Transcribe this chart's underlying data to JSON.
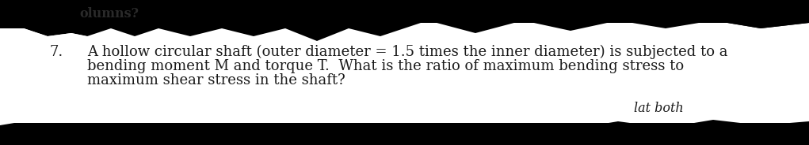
{
  "header_text": "olumns?",
  "question_number": "7.",
  "line1": "A hollow circular shaft (outer diameter = 1.5 times the inner diameter) is subjected to a",
  "line2": "bending moment M and torque T.  What is the ratio of maximum bending stress to",
  "line3": "maximum shear stress in the shaft?",
  "footer_text": "lat both",
  "bg_color": "#000000",
  "text_color": "#1a1a1a",
  "font_size": 13.0,
  "header_font_size": 11.5,
  "fig_width": 10.21,
  "fig_height": 1.84,
  "top_torn_x": [
    0,
    0,
    55,
    80,
    105,
    140,
    170,
    210,
    260,
    310,
    360,
    410,
    470,
    530,
    580,
    630,
    680,
    730,
    800,
    860,
    920,
    970,
    1021,
    1021
  ],
  "top_torn_y": [
    184,
    28,
    28,
    32,
    22,
    18,
    26,
    20,
    28,
    20,
    26,
    18,
    35,
    18,
    28,
    18,
    28,
    20,
    32,
    18,
    28,
    20,
    28,
    184
  ],
  "bot_torn_x": [
    0,
    0,
    50,
    100,
    150,
    200,
    280,
    360,
    440,
    520,
    600,
    680,
    760,
    840,
    920,
    1000,
    1021,
    1021
  ],
  "bot_torn_y": [
    0,
    155,
    148,
    152,
    145,
    148,
    153,
    145,
    150,
    142,
    148,
    152,
    145,
    152,
    145,
    150,
    148,
    0
  ],
  "left_white_x": [
    0,
    0,
    60,
    90,
    120,
    150
  ],
  "left_white_y": [
    184,
    80,
    50,
    45,
    55,
    184
  ]
}
